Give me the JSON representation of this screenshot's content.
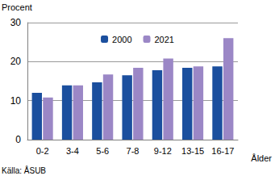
{
  "chart_data": {
    "type": "bar",
    "y_label": "Procent",
    "x_label": "Ålder",
    "annotations": [
      "Källa: ÅSUB"
    ],
    "categories": [
      "0-2",
      "3-4",
      "5-6",
      "7-8",
      "9-12",
      "13-15",
      "16-17"
    ],
    "series": [
      {
        "name": "2000",
        "color": "#1b4f9e",
        "values": [
          12,
          13.9,
          14.7,
          16.5,
          17.8,
          18.4,
          18.8
        ]
      },
      {
        "name": "2021",
        "color": "#9b87c6",
        "values": [
          10.8,
          13.9,
          16.7,
          18.4,
          20.8,
          18.8,
          26
        ]
      }
    ],
    "ylim": [
      0,
      30
    ],
    "yticks": [
      0,
      10,
      20,
      30
    ],
    "grid": true,
    "legend": "top"
  }
}
